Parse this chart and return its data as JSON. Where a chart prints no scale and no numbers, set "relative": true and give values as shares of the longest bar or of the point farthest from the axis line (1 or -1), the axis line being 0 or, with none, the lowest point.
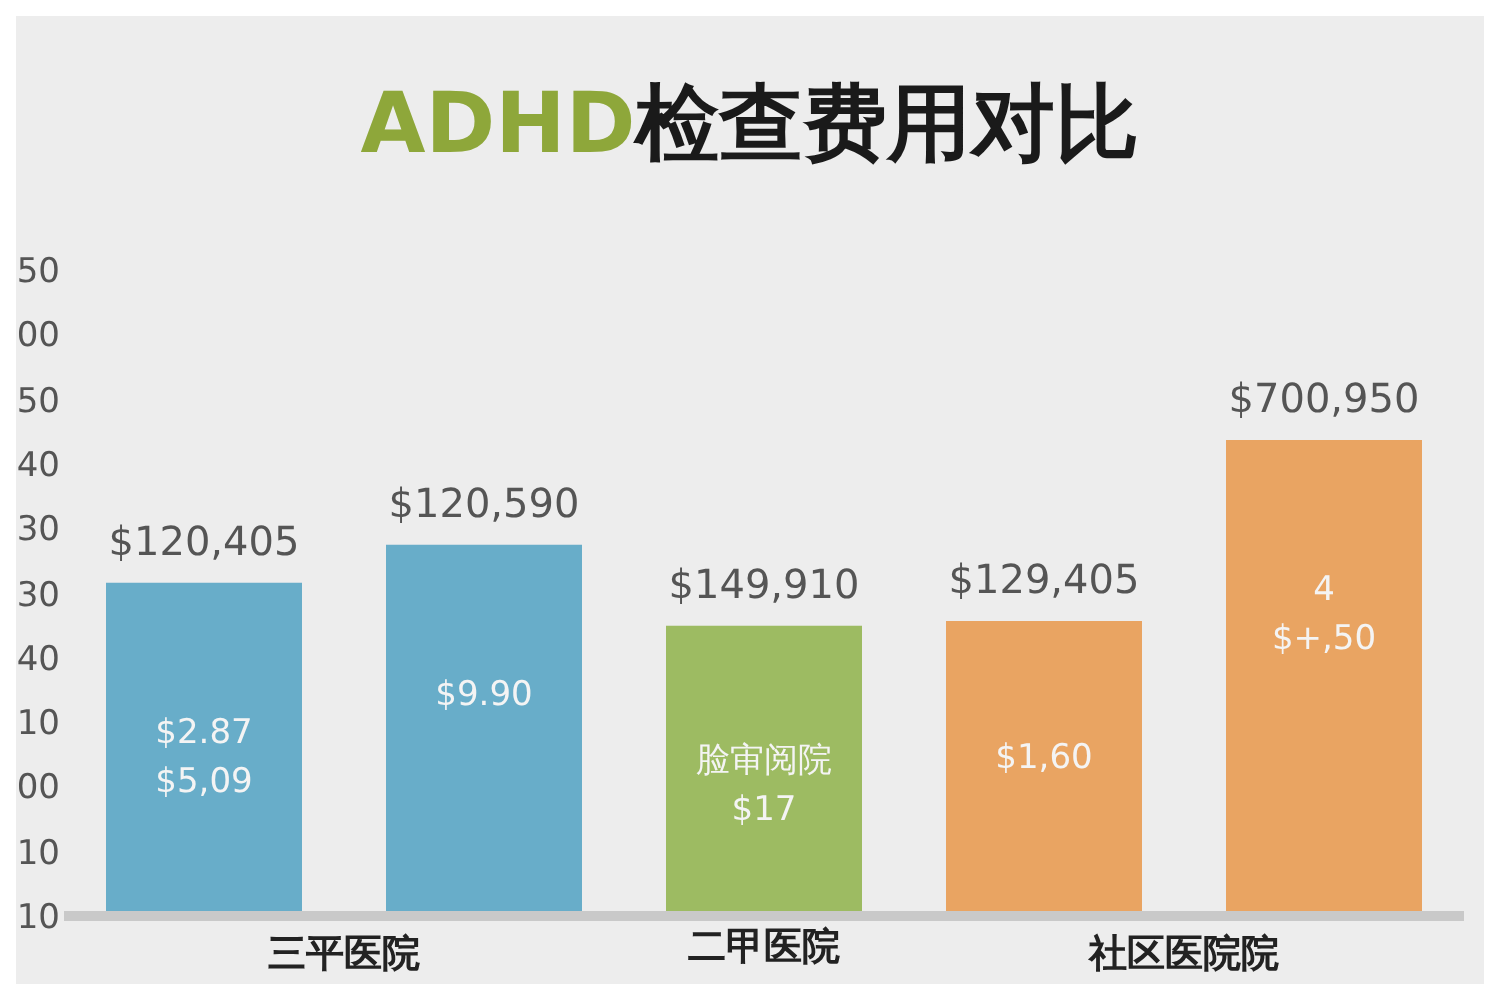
{
  "chart_data": {
    "type": "bar",
    "title": "ADHD检查费用对比",
    "relative": true,
    "categories": [
      null,
      null,
      "二甲医院",
      null,
      null
    ],
    "values": [
      0.7,
      0.78,
      0.61,
      0.62,
      1
    ],
    "colors": [
      "#68adc9",
      "#68adc9",
      "#9dbb62",
      "#e9a462",
      "#e9a462"
    ],
    "annotations": [
      "三平医院",
      "社区医院院",
      "$120,405",
      "$120,590",
      "$149,910",
      "$129,405",
      "$700,950",
      "$2.87\n$5,09",
      "$9.90",
      "脸审阅院\n$17",
      "$1,60",
      "4\n$+,50",
      "50",
      "00",
      "50",
      "40",
      "30",
      "30",
      "40",
      "10",
      "00",
      "10",
      "10"
    ],
    "grid": false,
    "legend": false
  }
}
